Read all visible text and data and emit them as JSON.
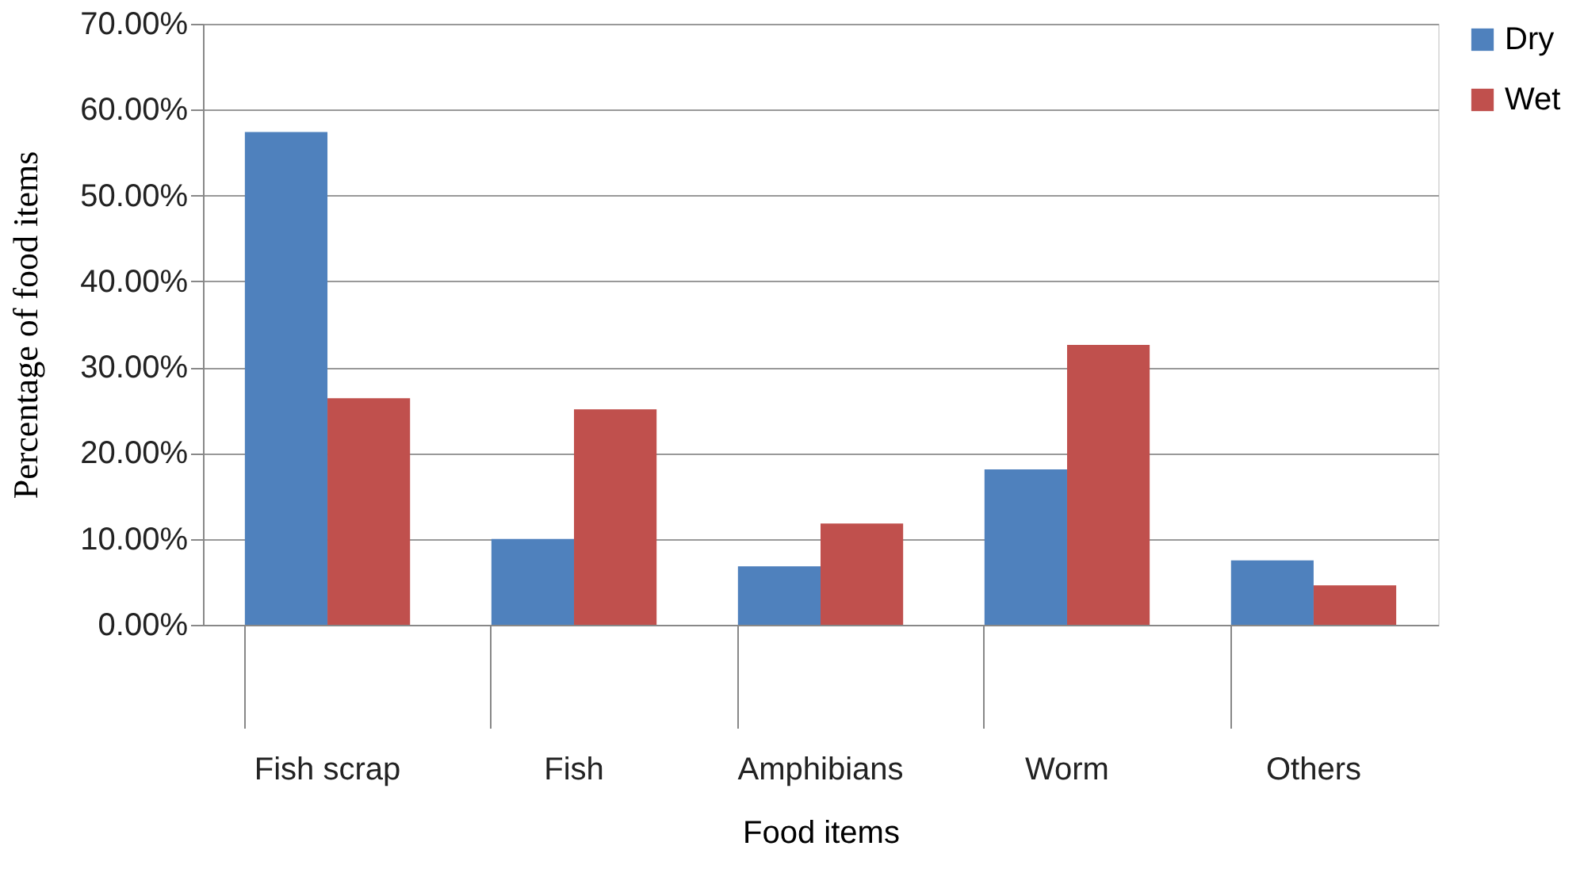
{
  "chart_data": {
    "type": "bar",
    "xlabel": "Food items",
    "ylabel": "Percentage of food items",
    "categories": [
      "Fish scrap",
      "Fish",
      "Amphibians",
      "Worm",
      "Others"
    ],
    "series": [
      {
        "name": "Dry",
        "color": "#4f81bd",
        "values": [
          57.4,
          10.0,
          6.8,
          18.1,
          7.5
        ]
      },
      {
        "name": "Wet",
        "color": "#c0504d",
        "values": [
          26.4,
          25.1,
          11.8,
          32.6,
          4.6
        ]
      }
    ],
    "ylim": [
      0,
      70
    ],
    "yticks": [
      {
        "value": 0,
        "label": "0.00%"
      },
      {
        "value": 10,
        "label": "10.00%"
      },
      {
        "value": 20,
        "label": "20.00%"
      },
      {
        "value": 30,
        "label": "30.00%"
      },
      {
        "value": 40,
        "label": "40.00%"
      },
      {
        "value": 50,
        "label": "50.00%"
      },
      {
        "value": 60,
        "label": "60.00%"
      },
      {
        "value": 70,
        "label": "70.00%"
      }
    ],
    "grid": "y",
    "legend": "right"
  }
}
